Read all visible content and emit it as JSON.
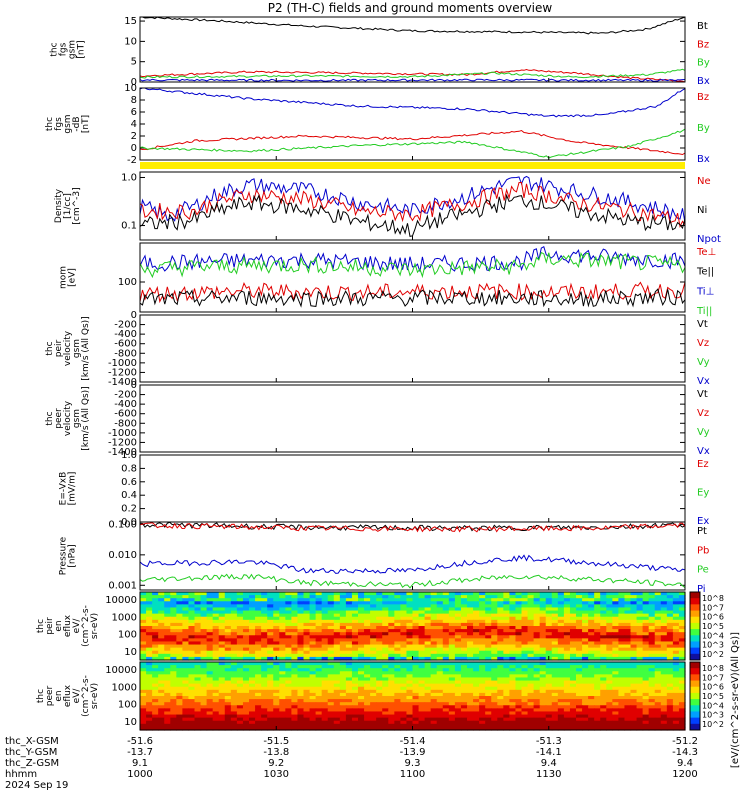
{
  "title": "P2 (TH-C) fields and ground moments overview",
  "colors": {
    "black": "#000000",
    "red": "#e00000",
    "green": "#22cc22",
    "blue": "#0000cc",
    "yellow": "#ffee00"
  },
  "chart_data": [
    {
      "type": "line",
      "ylabel": "thc\nfgs\ngsm\n[nT]",
      "ylim": [
        0,
        16
      ],
      "yticks": [
        "0",
        "5",
        "10",
        "15"
      ],
      "legend": [
        "Bt",
        "Bz",
        "By",
        "Bx"
      ],
      "series": [
        {
          "name": "Bt",
          "color": "black",
          "points": [
            [
              0,
              16
            ],
            [
              0.15,
              15
            ],
            [
              0.3,
              13.8
            ],
            [
              0.5,
              12.6
            ],
            [
              0.7,
              12.3
            ],
            [
              0.85,
              12.0
            ],
            [
              0.93,
              13
            ],
            [
              1,
              16
            ]
          ]
        },
        {
          "name": "Bz",
          "color": "red",
          "points": [
            [
              0,
              1.5
            ],
            [
              0.2,
              2.5
            ],
            [
              0.4,
              2.2
            ],
            [
              0.6,
              1.8
            ],
            [
              0.7,
              3
            ],
            [
              0.8,
              2.2
            ],
            [
              0.9,
              1
            ],
            [
              1,
              0.2
            ]
          ]
        },
        {
          "name": "By",
          "color": "green",
          "points": [
            [
              0,
              1.2
            ],
            [
              0.3,
              1.5
            ],
            [
              0.5,
              1.3
            ],
            [
              0.65,
              2.2
            ],
            [
              0.8,
              1.2
            ],
            [
              0.93,
              1.8
            ],
            [
              1,
              3
            ]
          ]
        },
        {
          "name": "Bx",
          "color": "blue",
          "points": [
            [
              0,
              0.5
            ],
            [
              0.3,
              0.4
            ],
            [
              0.6,
              0.5
            ],
            [
              1,
              0.4
            ]
          ]
        }
      ]
    },
    {
      "type": "line",
      "ylabel": "thc\nfgs\ngsm\n-dB\n[nT]",
      "ylim": [
        -2,
        10
      ],
      "yticks": [
        "-2",
        "0",
        "2",
        "4",
        "6",
        "8",
        "10"
      ],
      "legend": [
        "Bz",
        "By",
        "Bx"
      ],
      "series": [
        {
          "name": "Bz",
          "color": "blue",
          "points": [
            [
              0,
              10
            ],
            [
              0.2,
              8.2
            ],
            [
              0.4,
              7
            ],
            [
              0.6,
              6.5
            ],
            [
              0.75,
              5.3
            ],
            [
              0.85,
              5.5
            ],
            [
              0.95,
              7
            ],
            [
              1,
              10
            ]
          ]
        },
        {
          "name": "By",
          "color": "red",
          "points": [
            [
              0,
              -0.3
            ],
            [
              0.1,
              1.2
            ],
            [
              0.3,
              2
            ],
            [
              0.5,
              1.5
            ],
            [
              0.7,
              2.8
            ],
            [
              0.8,
              1
            ],
            [
              0.9,
              0
            ],
            [
              1,
              -1
            ]
          ]
        },
        {
          "name": "Bx",
          "color": "green",
          "points": [
            [
              0,
              0
            ],
            [
              0.2,
              -0.5
            ],
            [
              0.4,
              0.4
            ],
            [
              0.6,
              1
            ],
            [
              0.75,
              -1.5
            ],
            [
              0.9,
              0.3
            ],
            [
              1,
              3
            ]
          ]
        }
      ]
    },
    {
      "type": "line",
      "scale": "log",
      "ylabel": "Density\n[1/cc]\n[cm^-3]",
      "ylim": [
        0.05,
        1.3
      ],
      "yticks": [
        "0.1",
        "1.0"
      ],
      "legend": [
        "Ne",
        "Ni",
        "Npot"
      ],
      "series": [
        {
          "name": "Npot",
          "color": "blue",
          "points": [
            [
              0,
              0.25
            ],
            [
              0.05,
              0.15
            ],
            [
              0.1,
              0.25
            ],
            [
              0.2,
              0.7
            ],
            [
              0.3,
              0.55
            ],
            [
              0.4,
              0.3
            ],
            [
              0.5,
              0.2
            ],
            [
              0.6,
              0.4
            ],
            [
              0.7,
              0.85
            ],
            [
              0.8,
              0.5
            ],
            [
              0.9,
              0.3
            ],
            [
              1,
              0.15
            ]
          ]
        },
        {
          "name": "Ne",
          "color": "red",
          "points": [
            [
              0,
              0.2
            ],
            [
              0.1,
              0.2
            ],
            [
              0.2,
              0.45
            ],
            [
              0.3,
              0.35
            ],
            [
              0.4,
              0.2
            ],
            [
              0.5,
              0.17
            ],
            [
              0.6,
              0.3
            ],
            [
              0.7,
              0.55
            ],
            [
              0.8,
              0.3
            ],
            [
              0.9,
              0.2
            ],
            [
              1,
              0.12
            ]
          ]
        },
        {
          "name": "Ni",
          "color": "black",
          "points": [
            [
              0,
              0.1
            ],
            [
              0.1,
              0.13
            ],
            [
              0.2,
              0.3
            ],
            [
              0.3,
              0.22
            ],
            [
              0.4,
              0.12
            ],
            [
              0.5,
              0.08
            ],
            [
              0.6,
              0.18
            ],
            [
              0.7,
              0.35
            ],
            [
              0.8,
              0.2
            ],
            [
              0.9,
              0.12
            ],
            [
              1,
              0.1
            ]
          ]
        }
      ]
    },
    {
      "type": "line",
      "scale": "log",
      "ylabel": "mom\n[eV]",
      "ylim": [
        10,
        2000
      ],
      "yticks": [
        "100"
      ],
      "legend": [
        "Te⊥",
        "Te||",
        "Ti⊥",
        "Ti||"
      ],
      "series": [
        {
          "name": "Ti||",
          "color": "blue",
          "points": [
            [
              0,
              400
            ],
            [
              0.15,
              500
            ],
            [
              0.3,
              550
            ],
            [
              0.5,
              380
            ],
            [
              0.6,
              420
            ],
            [
              0.7,
              480
            ],
            [
              0.75,
              900
            ],
            [
              0.85,
              700
            ],
            [
              1,
              500
            ]
          ]
        },
        {
          "name": "Ti⊥",
          "color": "green",
          "points": [
            [
              0,
              260
            ],
            [
              0.15,
              340
            ],
            [
              0.3,
              380
            ],
            [
              0.5,
              250
            ],
            [
              0.6,
              300
            ],
            [
              0.7,
              330
            ],
            [
              0.75,
              600
            ],
            [
              0.85,
              500
            ],
            [
              1,
              350
            ]
          ]
        },
        {
          "name": "Te⊥",
          "color": "red",
          "points": [
            [
              0,
              40
            ],
            [
              0.2,
              50
            ],
            [
              0.4,
              45
            ],
            [
              0.6,
              50
            ],
            [
              0.8,
              45
            ],
            [
              1,
              55
            ]
          ]
        },
        {
          "name": "Te||",
          "color": "black",
          "points": [
            [
              0,
              25
            ],
            [
              0.2,
              30
            ],
            [
              0.4,
              28
            ],
            [
              0.6,
              30
            ],
            [
              0.8,
              27
            ],
            [
              1,
              32
            ]
          ]
        }
      ]
    },
    {
      "type": "line",
      "ylabel": "thc\npeir\nvelocity\ngsm\n[km/s (All Qs)]",
      "ylim": [
        -1400,
        0
      ],
      "yticks": [
        "0",
        "-200",
        "-400",
        "-600",
        "-800",
        "-1000",
        "-1200",
        "-1400"
      ],
      "legend": [
        "Vt",
        "Vz",
        "Vy",
        "Vx"
      ],
      "series": []
    },
    {
      "type": "line",
      "ylabel": "thc\npeer\nvelocity\ngsm\n[km/s (All Qs)]",
      "ylim": [
        -1400,
        0
      ],
      "yticks": [
        "0",
        "-200",
        "-400",
        "-600",
        "-800",
        "-1000",
        "-1200",
        "-1400"
      ],
      "legend": [
        "Vt",
        "Vz",
        "Vy",
        "Vx"
      ],
      "series": []
    },
    {
      "type": "line",
      "ylabel": "E=-VxB\n[mV/m]",
      "ylim": [
        0,
        1
      ],
      "yticks": [
        "0.0",
        "0.2",
        "0.4",
        "0.6",
        "0.8",
        "1.0"
      ],
      "legend": [
        "Ez",
        "Ey",
        "Ex"
      ],
      "series": []
    },
    {
      "type": "line",
      "scale": "log",
      "ylabel": "Pressure\n[nPa]",
      "ylim": [
        0.0007,
        0.12
      ],
      "yticks": [
        "0.100",
        "0.010",
        "0.001"
      ],
      "legend": [
        "Pt",
        "Pb",
        "Pe",
        "Pi"
      ],
      "series": [
        {
          "name": "Pt",
          "color": "black",
          "points": [
            [
              0,
              0.1
            ],
            [
              0.3,
              0.08
            ],
            [
              0.6,
              0.075
            ],
            [
              0.85,
              0.08
            ],
            [
              1,
              0.1
            ]
          ]
        },
        {
          "name": "Pb",
          "color": "red",
          "points": [
            [
              0,
              0.095
            ],
            [
              0.3,
              0.075
            ],
            [
              0.6,
              0.07
            ],
            [
              0.85,
              0.075
            ],
            [
              1,
              0.095
            ]
          ]
        },
        {
          "name": "Pi",
          "color": "blue",
          "points": [
            [
              0,
              0.005
            ],
            [
              0.2,
              0.006
            ],
            [
              0.3,
              0.003
            ],
            [
              0.5,
              0.003
            ],
            [
              0.7,
              0.008
            ],
            [
              0.85,
              0.005
            ],
            [
              1,
              0.003
            ]
          ]
        },
        {
          "name": "Pe",
          "color": "green",
          "points": [
            [
              0,
              0.0015
            ],
            [
              0.2,
              0.002
            ],
            [
              0.3,
              0.0012
            ],
            [
              0.5,
              0.001
            ],
            [
              0.7,
              0.002
            ],
            [
              0.85,
              0.0015
            ],
            [
              1,
              0.001
            ]
          ]
        }
      ]
    },
    {
      "type": "heatmap",
      "ylabel": "thc\npeir\nen\neflux\neV/\n(cm^2-s-\nsr-eV)",
      "yticks": [
        "10000",
        "1000",
        "100",
        "10"
      ],
      "colorbar": {
        "ticks": [
          "10^8",
          "10^7",
          "10^6",
          "10^5",
          "10^4",
          "10^3",
          "10^2"
        ]
      }
    },
    {
      "type": "heatmap",
      "ylabel": "thc\npeer\nen\neflux\neV/\n(cm^2-s-\nsr-eV)",
      "yticks": [
        "10000",
        "1000",
        "100",
        "10"
      ],
      "colorbar": {
        "ticks": [
          "10^8",
          "10^7",
          "10^6",
          "10^5",
          "10^4",
          "10^3",
          "10^2"
        ]
      }
    }
  ],
  "colorbar_label": "[eV/(cm^2-s-sr-eV)(All Qs)]",
  "footer": {
    "rows": [
      {
        "label": "thc_X-GSM",
        "values": [
          "-51.6",
          "-51.5",
          "-51.4",
          "-51.3",
          "-51.2"
        ]
      },
      {
        "label": "thc_Y-GSM",
        "values": [
          "-13.7",
          "-13.8",
          "-13.9",
          "-14.1",
          "-14.3"
        ]
      },
      {
        "label": "thc_Z-GSM",
        "values": [
          "9.1",
          "9.2",
          "9.3",
          "9.4",
          "9.4"
        ]
      },
      {
        "label": "hhmm",
        "values": [
          "1000",
          "1030",
          "1100",
          "1130",
          "1200"
        ]
      }
    ],
    "date": "2024 Sep 19"
  }
}
